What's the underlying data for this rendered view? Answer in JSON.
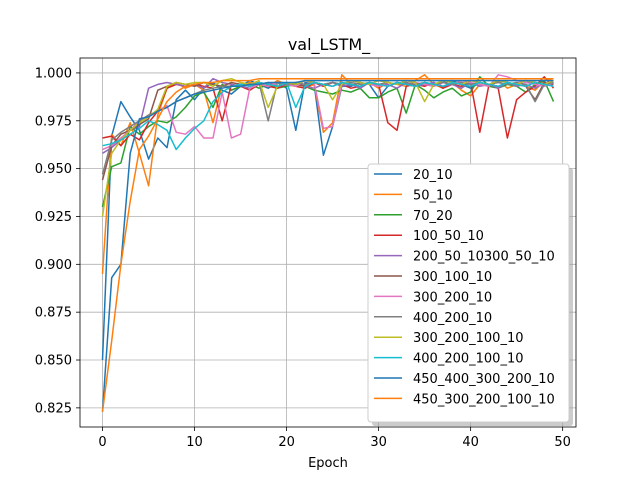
{
  "chart_data": {
    "type": "line",
    "title": "val_LSTM_",
    "xlabel": "Epoch",
    "ylabel": "",
    "xlim": [
      -2.45,
      51.45
    ],
    "ylim": [
      0.815,
      1.0078
    ],
    "xticks": [
      0,
      10,
      20,
      30,
      40,
      50
    ],
    "yticks": [
      0.825,
      0.85,
      0.875,
      0.9,
      0.925,
      0.95,
      0.975,
      1.0
    ],
    "ytick_labels": [
      "0.825",
      "0.850",
      "0.875",
      "0.900",
      "0.925",
      "0.950",
      "0.975",
      "1.000"
    ],
    "grid": true,
    "legend_position": "lower-right",
    "series": [
      {
        "name": "20_10",
        "color": "#1f77b4",
        "values": [
          0.85,
          0.967,
          0.985,
          0.977,
          0.97,
          0.955,
          0.966,
          0.961,
          0.986,
          0.991,
          0.986,
          0.992,
          0.995,
          0.991,
          0.989,
          0.993,
          0.996,
          0.994,
          0.992,
          0.995,
          0.992,
          0.97,
          0.995,
          0.994,
          0.957,
          0.972,
          0.993,
          0.993,
          0.995,
          0.994,
          0.987,
          0.993,
          0.995,
          0.994,
          0.993,
          0.994,
          0.993,
          0.995,
          0.996,
          0.994,
          0.992,
          0.995,
          0.994,
          0.993,
          0.995,
          0.994,
          0.996,
          0.994,
          0.993,
          0.995
        ]
      },
      {
        "name": "50_10",
        "color": "#ff7f0e",
        "values": [
          0.895,
          0.968,
          0.962,
          0.974,
          0.958,
          0.941,
          0.978,
          0.992,
          0.995,
          0.992,
          0.994,
          0.991,
          0.974,
          0.994,
          0.991,
          0.993,
          0.995,
          0.994,
          0.993,
          0.996,
          0.994,
          0.993,
          0.992,
          0.994,
          0.969,
          0.974,
          0.999,
          0.994,
          0.993,
          0.995,
          0.992,
          0.995,
          0.994,
          0.993,
          0.996,
          0.999,
          0.994,
          0.992,
          0.995,
          0.991,
          0.988,
          0.994,
          0.993,
          0.996,
          0.992,
          0.994,
          0.993,
          0.991,
          0.996,
          0.997
        ]
      },
      {
        "name": "70_20",
        "color": "#2ca02c",
        "values": [
          0.93,
          0.951,
          0.953,
          0.972,
          0.968,
          0.972,
          0.975,
          0.974,
          0.977,
          0.982,
          0.988,
          0.99,
          0.982,
          0.994,
          0.991,
          0.993,
          0.994,
          0.992,
          0.994,
          0.992,
          0.993,
          0.994,
          0.993,
          0.991,
          0.99,
          0.989,
          0.991,
          0.99,
          0.992,
          0.987,
          0.987,
          0.99,
          0.992,
          0.979,
          0.994,
          0.991,
          0.987,
          0.99,
          0.992,
          0.988,
          0.99,
          0.998,
          0.993,
          0.992,
          0.994,
          0.993,
          0.99,
          0.994,
          0.996,
          0.985
        ]
      },
      {
        "name": "100_50_10",
        "color": "#d62728",
        "values": [
          0.966,
          0.967,
          0.962,
          0.968,
          0.965,
          0.974,
          0.98,
          0.992,
          0.994,
          0.993,
          0.994,
          0.993,
          0.992,
          0.975,
          0.994,
          0.993,
          0.991,
          0.994,
          0.993,
          0.992,
          0.994,
          0.993,
          0.992,
          0.995,
          0.993,
          0.995,
          0.994,
          0.992,
          0.993,
          0.995,
          0.994,
          0.974,
          0.97,
          0.993,
          0.994,
          0.993,
          0.995,
          0.992,
          0.994,
          0.993,
          0.995,
          0.969,
          0.994,
          0.992,
          0.966,
          0.986,
          0.99,
          0.993,
          0.998,
          0.992
        ]
      },
      {
        "name": "200_50_10300_50_10",
        "color": "#9467bd",
        "values": [
          0.958,
          0.961,
          0.965,
          0.97,
          0.972,
          0.992,
          0.994,
          0.995,
          0.994,
          0.993,
          0.994,
          0.992,
          0.997,
          0.995,
          0.994,
          0.993,
          0.992,
          0.994,
          0.995,
          0.993,
          0.994,
          0.995,
          0.993,
          0.992,
          0.994,
          0.995,
          0.993,
          0.994,
          0.992,
          0.995,
          0.993,
          0.994,
          0.992,
          0.995,
          0.993,
          0.994,
          0.995,
          0.993,
          0.994,
          0.992,
          0.995,
          0.993,
          0.994,
          0.992,
          0.995,
          0.993,
          0.994,
          0.992,
          0.995,
          0.993
        ]
      },
      {
        "name": "300_100_10",
        "color": "#8c564b",
        "values": [
          0.944,
          0.962,
          0.968,
          0.97,
          0.973,
          0.976,
          0.991,
          0.993,
          0.995,
          0.994,
          0.993,
          0.995,
          0.994,
          0.993,
          0.995,
          0.994,
          0.993,
          0.995,
          0.994,
          0.993,
          0.995,
          0.994,
          0.993,
          0.995,
          0.994,
          0.993,
          0.995,
          0.994,
          0.993,
          0.995,
          0.994,
          0.993,
          0.995,
          0.994,
          0.993,
          0.995,
          0.994,
          0.993,
          0.995,
          0.994,
          0.993,
          0.995,
          0.994,
          0.993,
          0.995,
          0.994,
          0.993,
          0.986,
          0.995,
          0.994
        ]
      },
      {
        "name": "300_200_10",
        "color": "#e377c2",
        "values": [
          0.96,
          0.962,
          0.966,
          0.97,
          0.975,
          0.977,
          0.98,
          0.983,
          0.969,
          0.968,
          0.972,
          0.966,
          0.966,
          0.99,
          0.966,
          0.968,
          0.992,
          0.994,
          0.993,
          0.995,
          0.994,
          0.993,
          0.996,
          0.995,
          0.971,
          0.972,
          0.994,
          0.996,
          0.995,
          0.994,
          0.993,
          0.995,
          0.994,
          0.996,
          0.995,
          0.994,
          0.993,
          0.995,
          0.994,
          0.996,
          0.995,
          0.994,
          0.993,
          0.999,
          0.998,
          0.996,
          0.995,
          0.994,
          0.993,
          0.995
        ]
      },
      {
        "name": "400_200_10",
        "color": "#7f7f7f",
        "values": [
          0.947,
          0.965,
          0.969,
          0.972,
          0.975,
          0.978,
          0.98,
          0.982,
          0.985,
          0.987,
          0.989,
          0.991,
          0.992,
          0.993,
          0.993,
          0.994,
          0.994,
          0.995,
          0.975,
          0.995,
          0.994,
          0.995,
          0.994,
          0.995,
          0.994,
          0.995,
          0.994,
          0.995,
          0.994,
          0.995,
          0.994,
          0.995,
          0.994,
          0.995,
          0.994,
          0.995,
          0.994,
          0.995,
          0.994,
          0.995,
          0.994,
          0.995,
          0.994,
          0.995,
          0.994,
          0.995,
          0.994,
          0.985,
          0.994,
          0.995
        ]
      },
      {
        "name": "300_200_100_10",
        "color": "#bcbd22",
        "values": [
          0.925,
          0.958,
          0.965,
          0.97,
          0.974,
          0.977,
          0.981,
          0.993,
          0.995,
          0.994,
          0.995,
          0.995,
          0.993,
          0.996,
          0.997,
          0.995,
          0.994,
          0.996,
          0.982,
          0.993,
          0.995,
          0.994,
          0.996,
          0.995,
          0.994,
          0.986,
          0.994,
          0.996,
          0.995,
          0.994,
          0.996,
          0.995,
          0.994,
          0.996,
          0.995,
          0.985,
          0.994,
          0.996,
          0.995,
          0.994,
          0.996,
          0.995,
          0.994,
          0.996,
          0.995,
          0.994,
          0.996,
          0.995,
          0.994,
          0.996
        ]
      },
      {
        "name": "400_200_100_10",
        "color": "#17becf",
        "values": [
          0.962,
          0.963,
          0.965,
          0.968,
          0.971,
          0.975,
          0.973,
          0.97,
          0.96,
          0.966,
          0.971,
          0.975,
          0.985,
          0.99,
          0.993,
          0.994,
          0.993,
          0.995,
          0.994,
          0.993,
          0.995,
          0.982,
          0.993,
          0.995,
          0.994,
          0.993,
          0.995,
          0.994,
          0.993,
          0.995,
          0.994,
          0.993,
          0.995,
          0.994,
          0.993,
          0.995,
          0.994,
          0.993,
          0.995,
          0.994,
          0.993,
          0.995,
          0.994,
          0.993,
          0.995,
          0.994,
          0.993,
          0.995,
          0.994,
          0.993
        ]
      },
      {
        "name": "450_400_300_200_10",
        "color": "#1f77b4",
        "values": [
          0.823,
          0.893,
          0.9,
          0.958,
          0.976,
          0.977,
          0.98,
          0.982,
          0.985,
          0.987,
          0.989,
          0.99,
          0.991,
          0.992,
          0.993,
          0.993,
          0.994,
          0.994,
          0.995,
          0.995,
          0.995,
          0.995,
          0.996,
          0.996,
          0.996,
          0.996,
          0.996,
          0.996,
          0.996,
          0.996,
          0.996,
          0.996,
          0.996,
          0.996,
          0.996,
          0.996,
          0.996,
          0.996,
          0.996,
          0.996,
          0.996,
          0.996,
          0.996,
          0.996,
          0.996,
          0.996,
          0.996,
          0.996,
          0.996,
          0.996
        ]
      },
      {
        "name": "450_300_200_100_10",
        "color": "#ff7f0e",
        "values": [
          0.823,
          0.86,
          0.9,
          0.933,
          0.96,
          0.967,
          0.976,
          0.985,
          0.99,
          0.993,
          0.994,
          0.995,
          0.995,
          0.996,
          0.996,
          0.996,
          0.996,
          0.997,
          0.997,
          0.997,
          0.997,
          0.997,
          0.997,
          0.997,
          0.997,
          0.997,
          0.997,
          0.997,
          0.997,
          0.997,
          0.997,
          0.997,
          0.997,
          0.997,
          0.997,
          0.997,
          0.997,
          0.997,
          0.997,
          0.997,
          0.997,
          0.997,
          0.997,
          0.997,
          0.997,
          0.997,
          0.997,
          0.997,
          0.997,
          0.997
        ]
      }
    ]
  }
}
